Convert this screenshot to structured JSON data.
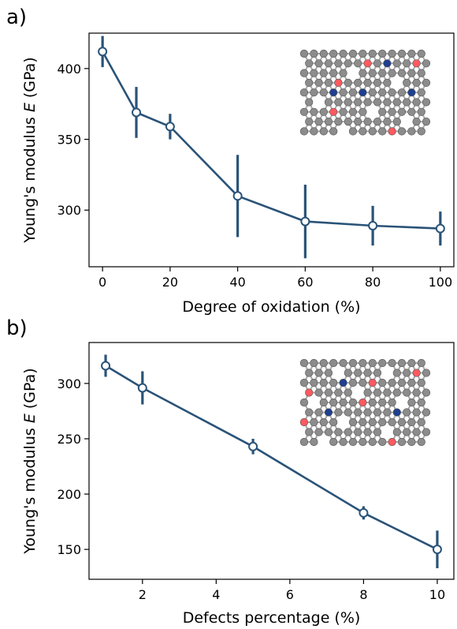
{
  "colors": {
    "series": "#2a5378",
    "atom_carbon": "#8c8c8c",
    "atom_oxygen": "#ff5a5f",
    "atom_nitrogen": "#1f3f8f"
  },
  "chart_data": [
    {
      "type": "line",
      "panel_label": "a)",
      "xlabel": "Degree of oxidation (%)",
      "ylabel_prefix": "Young's modulus ",
      "ylabel_var": "E",
      "ylabel_suffix": " (GPa)",
      "xlim": [
        -4,
        104
      ],
      "ylim": [
        260,
        425
      ],
      "xticks": [
        0,
        20,
        40,
        60,
        80,
        100
      ],
      "yticks": [
        300,
        350,
        400
      ],
      "x": [
        0,
        10,
        20,
        40,
        60,
        80,
        100
      ],
      "y": [
        412,
        369,
        359,
        310,
        292,
        289,
        287
      ],
      "yerr": [
        11,
        18,
        9,
        29,
        26,
        14,
        12
      ],
      "grid": false,
      "inset": "oxidized lattice structure"
    },
    {
      "type": "line",
      "panel_label": "b)",
      "xlabel": "Defects percentage (%)",
      "ylabel_prefix": "Young's modulus ",
      "ylabel_var": "E",
      "ylabel_suffix": " (GPa)",
      "xlim": [
        0.55,
        10.45
      ],
      "ylim": [
        123,
        337
      ],
      "xticks": [
        2,
        4,
        6,
        8,
        10
      ],
      "yticks": [
        150,
        200,
        250,
        300
      ],
      "x": [
        1,
        2,
        5,
        8,
        10
      ],
      "y": [
        316,
        296,
        243,
        183,
        150
      ],
      "yerr": [
        10,
        15,
        7,
        6,
        17
      ],
      "grid": false,
      "inset": "defective lattice structure"
    }
  ]
}
